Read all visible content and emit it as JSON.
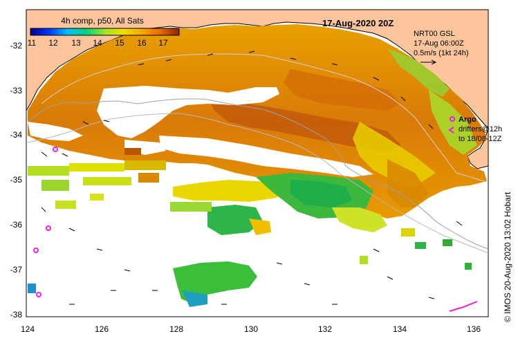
{
  "title": "17-Aug-2020 20Z",
  "colorbar": {
    "title": "4h comp, p50, All Sats",
    "ticks": [
      "11",
      "12",
      "13",
      "14",
      "15",
      "16",
      "17"
    ],
    "colors": [
      "#00008b",
      "#0033ff",
      "#00bfff",
      "#00d080",
      "#9be22a",
      "#f2e000",
      "#f7a800",
      "#e96a00",
      "#c44a00",
      "#8b2500"
    ]
  },
  "current_legend": {
    "line1": "NRT00 GSL",
    "line2": "17-Aug 06:00Z",
    "line3": "0.5m/s (1kt 24h)"
  },
  "argo_legend": {
    "argo_label": "Argo",
    "drifters_label": "drifters@12h",
    "to_label": "to 18/08-12Z"
  },
  "credit": "© IMOS 20-Aug-2020 13:02 Hobart",
  "axes": {
    "x_ticks": [
      "124",
      "126",
      "128",
      "130",
      "132",
      "134",
      "136"
    ],
    "y_ticks": [
      "-32",
      "-33",
      "-34",
      "-35",
      "-36",
      "-37",
      "-38"
    ]
  },
  "colors": {
    "land": "#fdc59c",
    "argo": "#e81ee8",
    "background": "#ffffff"
  }
}
